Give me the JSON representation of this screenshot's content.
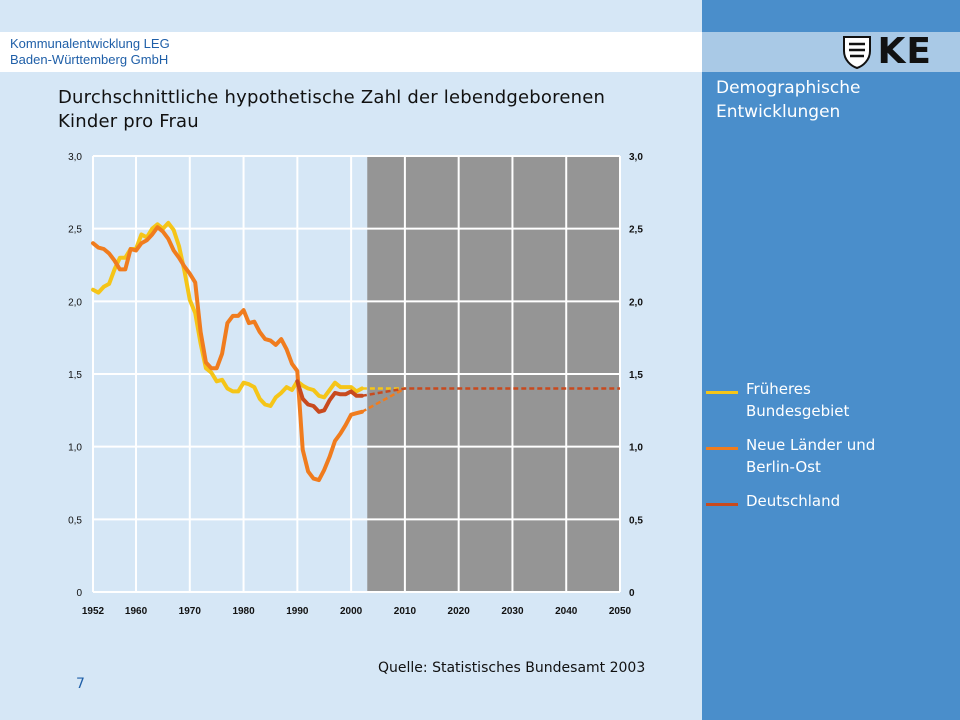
{
  "header": {
    "company_line1": "Kommunalentwicklung LEG",
    "company_line2": "Baden-Württemberg GmbH",
    "logo_text": "KE",
    "logo_icon": "coat-of-arms-icon"
  },
  "sidebar": {
    "subject_line1": "Demographische",
    "subject_line2": "Entwicklungen"
  },
  "title_line1": "Durchschnittliche hypothetische Zahl der lebendgeborenen",
  "title_line2": "Kinder pro Frau",
  "source": "Quelle: Statistisches Bundesamt 2003",
  "page_number": "7",
  "legend": [
    {
      "label_line1": "Früheres",
      "label_line2": "Bundesgebiet",
      "color": "#f5c518"
    },
    {
      "label_line1": "Neue Länder und",
      "label_line2": "Berlin-Ost",
      "color": "#f07c1e"
    },
    {
      "label_line1": "Deutschland",
      "label_line2": "",
      "color": "#c84a1e"
    }
  ],
  "chart_data": {
    "type": "line",
    "title": "Durchschnittliche hypothetische Zahl der lebendgeborenen Kinder pro Frau",
    "xlim": [
      1952,
      2050
    ],
    "ylim": [
      0,
      3.0
    ],
    "x_ticks": [
      "1952",
      "1960",
      "1970",
      "1980",
      "1990",
      "2000",
      "2010",
      "2020",
      "2030",
      "2040",
      "2050"
    ],
    "y_ticks": [
      "0",
      "0,5",
      "1,0",
      "1,5",
      "2,0",
      "2,5",
      "3,0"
    ],
    "projection_shaded_from": 2003,
    "grid": true,
    "series": [
      {
        "name": "Früheres Bundesgebiet",
        "color": "#f5c518",
        "x": [
          1952,
          1953,
          1954,
          1955,
          1956,
          1957,
          1958,
          1959,
          1960,
          1961,
          1962,
          1963,
          1964,
          1965,
          1966,
          1967,
          1968,
          1969,
          1970,
          1971,
          1972,
          1973,
          1974,
          1975,
          1976,
          1977,
          1978,
          1979,
          1980,
          1981,
          1982,
          1983,
          1984,
          1985,
          1986,
          1987,
          1988,
          1989,
          1990,
          1991,
          1992,
          1993,
          1994,
          1995,
          1996,
          1997,
          1998,
          1999,
          2000,
          2001,
          2002
        ],
        "y": [
          2.08,
          2.06,
          2.1,
          2.12,
          2.22,
          2.3,
          2.3,
          2.36,
          2.36,
          2.46,
          2.44,
          2.5,
          2.53,
          2.5,
          2.54,
          2.49,
          2.38,
          2.21,
          2.01,
          1.92,
          1.71,
          1.54,
          1.51,
          1.45,
          1.46,
          1.4,
          1.38,
          1.38,
          1.44,
          1.43,
          1.41,
          1.33,
          1.29,
          1.28,
          1.34,
          1.37,
          1.41,
          1.39,
          1.45,
          1.42,
          1.4,
          1.39,
          1.35,
          1.34,
          1.39,
          1.44,
          1.41,
          1.41,
          1.41,
          1.38,
          1.4
        ]
      },
      {
        "name": "Neue Länder und Berlin-Ost",
        "color": "#f07c1e",
        "x": [
          1952,
          1953,
          1954,
          1955,
          1956,
          1957,
          1958,
          1959,
          1960,
          1961,
          1962,
          1963,
          1964,
          1965,
          1966,
          1967,
          1968,
          1969,
          1970,
          1971,
          1972,
          1973,
          1974,
          1975,
          1976,
          1977,
          1978,
          1979,
          1980,
          1981,
          1982,
          1983,
          1984,
          1985,
          1986,
          1987,
          1988,
          1989,
          1990,
          1991,
          1992,
          1993,
          1994,
          1995,
          1996,
          1997,
          1998,
          1999,
          2000,
          2001,
          2002
        ],
        "y": [
          2.4,
          2.37,
          2.36,
          2.33,
          2.28,
          2.22,
          2.22,
          2.36,
          2.35,
          2.4,
          2.42,
          2.46,
          2.51,
          2.48,
          2.43,
          2.35,
          2.3,
          2.24,
          2.19,
          2.13,
          1.79,
          1.58,
          1.54,
          1.54,
          1.64,
          1.85,
          1.9,
          1.9,
          1.94,
          1.85,
          1.86,
          1.79,
          1.74,
          1.73,
          1.7,
          1.74,
          1.67,
          1.57,
          1.52,
          0.98,
          0.83,
          0.78,
          0.77,
          0.84,
          0.93,
          1.04,
          1.09,
          1.15,
          1.22,
          1.23,
          1.24
        ]
      },
      {
        "name": "Deutschland",
        "color": "#c84a1e",
        "x": [
          1990,
          1991,
          1992,
          1993,
          1994,
          1995,
          1996,
          1997,
          1998,
          1999,
          2000,
          2001,
          2002
        ],
        "y": [
          1.45,
          1.33,
          1.29,
          1.28,
          1.24,
          1.25,
          1.32,
          1.37,
          1.36,
          1.36,
          1.38,
          1.35,
          1.35
        ]
      },
      {
        "name": "Früheres Bundesgebiet (Projektion)",
        "color": "#f5c518",
        "dashed": true,
        "x": [
          2002,
          2010
        ],
        "y": [
          1.4,
          1.4
        ]
      },
      {
        "name": "Neue Länder und Berlin-Ost (Projektion)",
        "color": "#f07c1e",
        "dashed": true,
        "x": [
          2002,
          2010
        ],
        "y": [
          1.24,
          1.4
        ]
      },
      {
        "name": "Deutschland (Projektion)",
        "color": "#c84a1e",
        "dashed": true,
        "x": [
          2002,
          2010,
          2050
        ],
        "y": [
          1.35,
          1.4,
          1.4
        ]
      }
    ]
  }
}
